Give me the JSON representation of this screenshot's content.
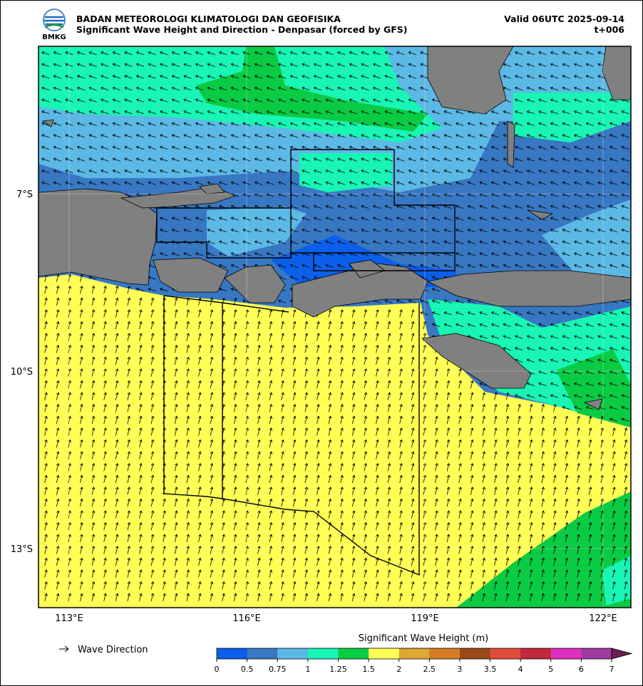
{
  "header": {
    "agency": "BADAN METEOROLOGI KLIMATOLOGI DAN GEOFISIKA",
    "title": "Significant Wave Height and Direction - Denpasar (forced by GFS)",
    "valid": "Valid 06UTC 2025-09-14",
    "lead": "t+006",
    "logo_text": "BMKG"
  },
  "map": {
    "lat_labels": [
      "7°S",
      "10°S",
      "13°S"
    ],
    "lon_labels": [
      "113°E",
      "116°E",
      "119°E",
      "122°E"
    ]
  },
  "legend": {
    "arrow_label": "Wave Direction"
  },
  "colorbar": {
    "label": "Significant Wave Height (m)",
    "ticks": [
      0,
      0.5,
      0.75,
      1,
      1.25,
      1.5,
      2,
      2.5,
      3,
      3.5,
      4,
      5,
      6,
      7
    ],
    "colors": [
      "#0b5fe8",
      "#3877c2",
      "#5cb9e6",
      "#18f5b4",
      "#0acb44",
      "#ffff55",
      "#dca733",
      "#d77b23",
      "#9b4916",
      "#e04b3b",
      "#c1283b",
      "#e02fc0",
      "#a13b9f",
      "#6b1f51"
    ]
  }
}
